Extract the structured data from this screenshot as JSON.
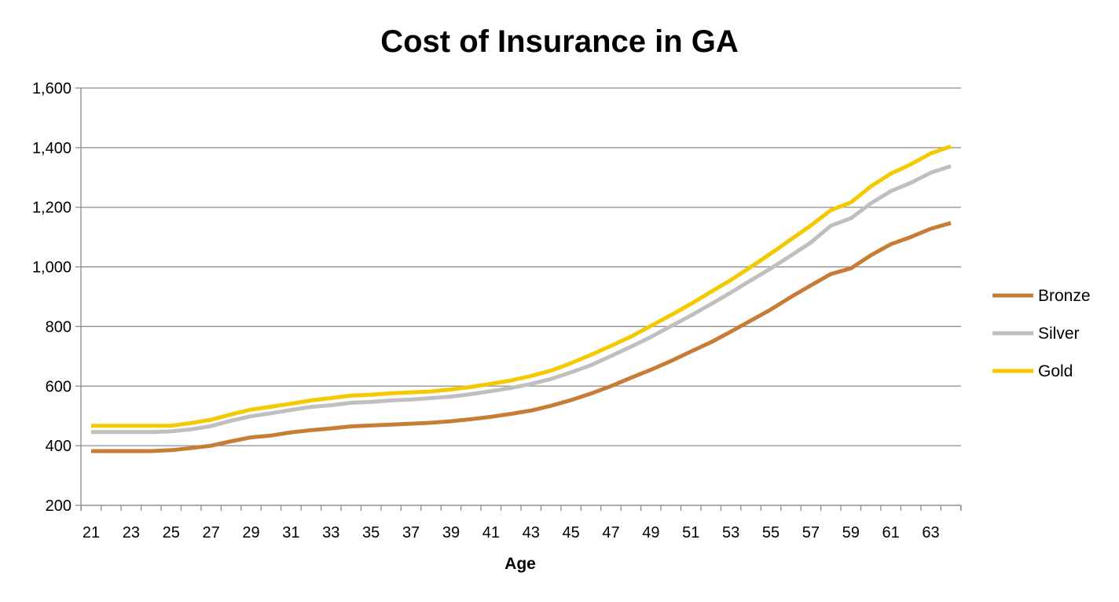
{
  "chart_data": {
    "type": "line",
    "title": "Cost of Insurance in GA",
    "xlabel": "Age",
    "ylabel": "",
    "x": [
      21,
      22,
      23,
      24,
      25,
      26,
      27,
      28,
      29,
      30,
      31,
      32,
      33,
      34,
      35,
      36,
      37,
      38,
      39,
      40,
      41,
      42,
      43,
      44,
      45,
      46,
      47,
      48,
      49,
      50,
      51,
      52,
      53,
      54,
      55,
      56,
      57,
      58,
      59,
      60,
      61,
      62,
      63,
      64
    ],
    "x_tick_labels": [
      "21",
      "23",
      "25",
      "27",
      "29",
      "31",
      "33",
      "35",
      "37",
      "39",
      "41",
      "43",
      "45",
      "47",
      "49",
      "51",
      "53",
      "55",
      "57",
      "59",
      "61",
      "63"
    ],
    "ylim": [
      200,
      1600
    ],
    "y_tick_labels": [
      "200",
      "400",
      "600",
      "800",
      "1,000",
      "1,200",
      "1,400",
      "1,600"
    ],
    "y_ticks": [
      200,
      400,
      600,
      800,
      1000,
      1200,
      1400,
      1600
    ],
    "grid": true,
    "legend_position": "right",
    "series": [
      {
        "name": "Bronze",
        "color": "#C87D36",
        "values": [
          382,
          382,
          382,
          382,
          385,
          392,
          400,
          415,
          428,
          434,
          445,
          452,
          458,
          465,
          468,
          471,
          474,
          477,
          482,
          489,
          497,
          507,
          518,
          534,
          553,
          575,
          600,
          628,
          655,
          684,
          716,
          747,
          783,
          820,
          857,
          899,
          938,
          976,
          995,
          1039,
          1076,
          1100,
          1128,
          1147
        ]
      },
      {
        "name": "Silver",
        "color": "#BFBFBF",
        "values": [
          446,
          446,
          446,
          446,
          448,
          455,
          466,
          484,
          499,
          509,
          520,
          530,
          536,
          544,
          547,
          552,
          555,
          560,
          565,
          573,
          583,
          594,
          607,
          624,
          646,
          670,
          701,
          732,
          765,
          801,
          837,
          875,
          914,
          955,
          995,
          1038,
          1082,
          1138,
          1163,
          1213,
          1254,
          1282,
          1316,
          1338
        ]
      },
      {
        "name": "Gold",
        "color": "#F5C900",
        "values": [
          467,
          467,
          467,
          467,
          467,
          476,
          487,
          505,
          521,
          531,
          541,
          552,
          560,
          568,
          571,
          576,
          579,
          582,
          589,
          597,
          608,
          619,
          634,
          652,
          677,
          705,
          735,
          766,
          802,
          838,
          876,
          916,
          956,
          1000,
          1045,
          1092,
          1139,
          1190,
          1216,
          1270,
          1313,
          1344,
          1381,
          1404
        ]
      }
    ]
  }
}
